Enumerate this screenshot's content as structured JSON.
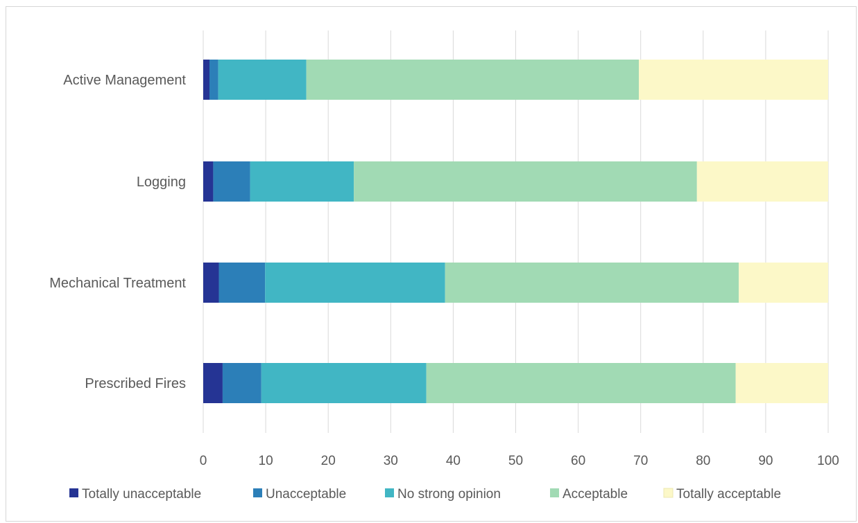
{
  "chart_data": {
    "type": "bar",
    "orientation": "horizontal",
    "stacked": true,
    "categories": [
      "Active Management",
      "Logging",
      "Mechanical Treatment",
      "Prescribed Fires"
    ],
    "series": [
      {
        "name": "Totally unacceptable",
        "color": "#253494",
        "values": [
          1.0,
          1.6,
          2.5,
          3.1
        ]
      },
      {
        "name": "Unacceptable",
        "color": "#2c7fb8",
        "values": [
          1.4,
          5.9,
          7.4,
          6.2
        ]
      },
      {
        "name": "No strong opinion",
        "color": "#41b6c4",
        "values": [
          14.1,
          16.6,
          28.8,
          26.4
        ]
      },
      {
        "name": "Acceptable",
        "color": "#a1dab4",
        "values": [
          53.2,
          54.9,
          47.0,
          49.5
        ]
      },
      {
        "name": "Totally acceptable",
        "color": "#fcf8c8",
        "values": [
          30.3,
          21.0,
          14.3,
          14.8
        ]
      }
    ],
    "xlim": [
      0,
      100
    ],
    "x_ticks": [
      "0",
      "10",
      "20",
      "30",
      "40",
      "50",
      "60",
      "70",
      "80",
      "90",
      "100"
    ],
    "grid": "vertical",
    "legend_position": "bottom"
  }
}
